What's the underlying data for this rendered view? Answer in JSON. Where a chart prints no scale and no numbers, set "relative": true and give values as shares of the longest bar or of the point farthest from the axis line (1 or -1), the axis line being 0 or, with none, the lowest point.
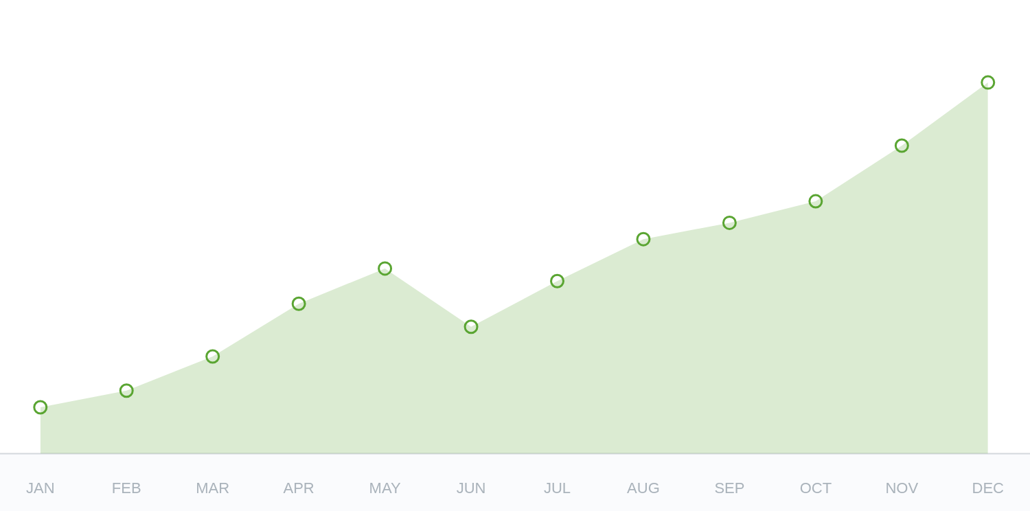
{
  "chart_data": {
    "type": "area",
    "relative": true,
    "categories": [
      "JAN",
      "FEB",
      "MAR",
      "APR",
      "MAY",
      "JUN",
      "JUL",
      "AUG",
      "SEP",
      "OCT",
      "NOV",
      "DEC"
    ],
    "series": [
      {
        "color": "#5aa532",
        "values": [
          0.125,
          0.17,
          0.262,
          0.404,
          0.499,
          0.342,
          0.465,
          0.578,
          0.622,
          0.68,
          0.83,
          1
        ]
      }
    ],
    "marker": "circle",
    "grid": false,
    "legend": false
  }
}
